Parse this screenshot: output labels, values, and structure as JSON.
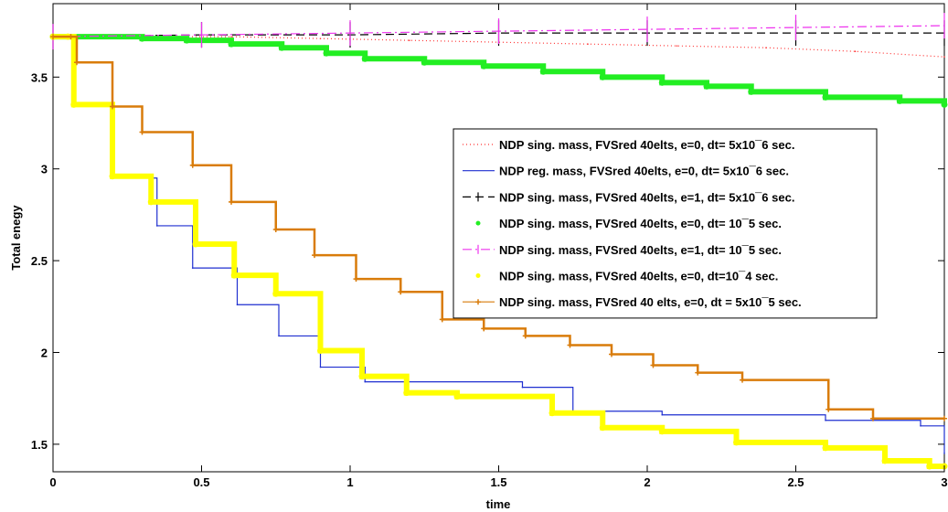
{
  "chart_data": {
    "type": "line",
    "xlabel": "time",
    "ylabel": "Total enegy",
    "xlim": [
      0,
      3
    ],
    "ylim": [
      1.35,
      3.9
    ],
    "xticks": [
      "0",
      "0.5",
      "1",
      "1.5",
      "2",
      "2.5",
      "3"
    ],
    "yticks": [
      "1.5",
      "2",
      "2.5",
      "3",
      "3.5"
    ],
    "legend_position": "center-right",
    "grid": false,
    "series": [
      {
        "name": "NDP sing. mass, FVSred 40elts, e=0, dt= 5x10¯6 sec.",
        "color": "#ff3333",
        "style": "dotted",
        "marker": "none",
        "x": [
          0,
          0.3,
          0.6,
          0.9,
          1.2,
          1.5,
          1.8,
          2.1,
          2.4,
          2.7,
          3.0
        ],
        "y": [
          3.72,
          3.72,
          3.72,
          3.71,
          3.7,
          3.69,
          3.68,
          3.67,
          3.66,
          3.64,
          3.61
        ]
      },
      {
        "name": "NDP reg. mass, FVSred 40elts, e=0, dt= 5x10¯6 sec.",
        "color": "#1f2fd0",
        "style": "solid",
        "marker": "none",
        "step": true,
        "x": [
          0,
          0.05,
          0.07,
          0.2,
          0.35,
          0.47,
          0.62,
          0.76,
          0.9,
          1.05,
          1.58,
          1.75,
          2.05,
          2.6,
          2.92,
          3.0
        ],
        "y": [
          3.72,
          3.72,
          3.35,
          2.95,
          2.69,
          2.46,
          2.26,
          2.09,
          1.92,
          1.84,
          1.81,
          1.68,
          1.66,
          1.63,
          1.6,
          1.45
        ]
      },
      {
        "name": "NDP sing. mass, FVSred 40elts, e=1, dt= 5x10¯6 sec.",
        "color": "#000000",
        "style": "dashed",
        "marker": "spike",
        "x": [
          0,
          0.5,
          1.0,
          1.5,
          2.0,
          2.5,
          3.0
        ],
        "y": [
          3.72,
          3.73,
          3.73,
          3.74,
          3.74,
          3.74,
          3.74
        ]
      },
      {
        "name": "NDP sing. mass, FVSred 40elts, e=0, dt= 10¯5 sec.",
        "color": "#22ee22",
        "style": "solid",
        "marker": "dot",
        "step": true,
        "x": [
          0,
          0.3,
          0.45,
          0.6,
          0.77,
          0.92,
          1.05,
          1.25,
          1.45,
          1.65,
          1.85,
          2.05,
          2.2,
          2.35,
          2.6,
          2.85,
          3.0
        ],
        "y": [
          3.72,
          3.71,
          3.7,
          3.68,
          3.66,
          3.63,
          3.6,
          3.58,
          3.56,
          3.53,
          3.5,
          3.47,
          3.45,
          3.42,
          3.39,
          3.37,
          3.35
        ]
      },
      {
        "name": "NDP sing. mass, FVSred 40elts, e=1, dt= 10¯5 sec.",
        "color": "#ee33ee",
        "style": "dashdot",
        "marker": "spike",
        "x": [
          0,
          0.5,
          1.0,
          1.5,
          2.0,
          2.5,
          3.0
        ],
        "y": [
          3.72,
          3.73,
          3.74,
          3.75,
          3.76,
          3.77,
          3.78
        ]
      },
      {
        "name": "NDP sing. mass, FVSred 40elts, e=0, dt=10¯4 sec.",
        "color": "#ffff00",
        "style": "solid",
        "marker": "dot",
        "step": true,
        "x": [
          0,
          0.05,
          0.07,
          0.2,
          0.33,
          0.48,
          0.61,
          0.75,
          0.9,
          1.04,
          1.19,
          1.36,
          1.68,
          1.85,
          2.05,
          2.3,
          2.6,
          2.8,
          2.95,
          3.0
        ],
        "y": [
          3.72,
          3.72,
          3.35,
          2.96,
          2.82,
          2.59,
          2.42,
          2.32,
          2.01,
          1.87,
          1.78,
          1.76,
          1.67,
          1.59,
          1.57,
          1.51,
          1.48,
          1.41,
          1.38,
          1.38
        ]
      },
      {
        "name": "NDP sing. mass, FVSred 40 elts, e=0, dt = 5x10¯5 sec.",
        "color": "#d97c0a",
        "style": "solid",
        "marker": "plus",
        "step": true,
        "x": [
          0,
          0.06,
          0.08,
          0.2,
          0.3,
          0.47,
          0.6,
          0.75,
          0.88,
          1.02,
          1.17,
          1.31,
          1.45,
          1.59,
          1.74,
          1.88,
          2.02,
          2.17,
          2.32,
          2.61,
          2.76,
          3.0
        ],
        "y": [
          3.72,
          3.72,
          3.58,
          3.34,
          3.2,
          3.02,
          2.82,
          2.67,
          2.53,
          2.4,
          2.33,
          2.18,
          2.13,
          2.09,
          2.04,
          1.99,
          1.93,
          1.89,
          1.85,
          1.69,
          1.64,
          1.64
        ]
      }
    ]
  }
}
